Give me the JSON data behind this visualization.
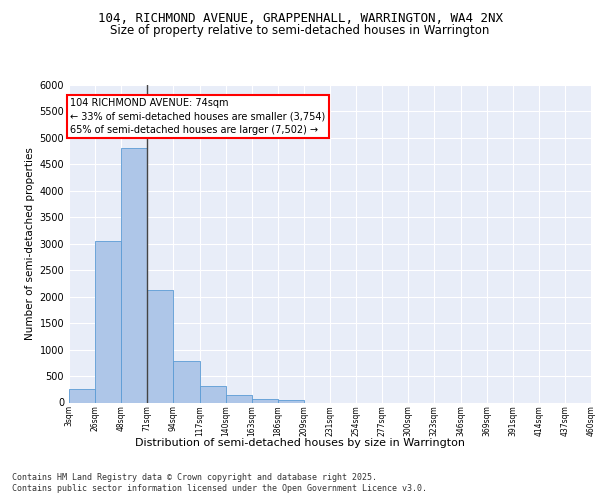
{
  "title_line1": "104, RICHMOND AVENUE, GRAPPENHALL, WARRINGTON, WA4 2NX",
  "title_line2": "Size of property relative to semi-detached houses in Warrington",
  "xlabel": "Distribution of semi-detached houses by size in Warrington",
  "ylabel": "Number of semi-detached properties",
  "bar_counts": [
    250,
    3050,
    4800,
    2120,
    780,
    310,
    140,
    75,
    40,
    0,
    0,
    0,
    0,
    0,
    0,
    0,
    0,
    0,
    0,
    0
  ],
  "bin_labels": [
    "3sqm",
    "26sqm",
    "48sqm",
    "71sqm",
    "94sqm",
    "117sqm",
    "140sqm",
    "163sqm",
    "186sqm",
    "209sqm",
    "231sqm",
    "254sqm",
    "277sqm",
    "300sqm",
    "323sqm",
    "346sqm",
    "369sqm",
    "391sqm",
    "414sqm",
    "437sqm",
    "460sqm"
  ],
  "ylim": [
    0,
    6000
  ],
  "yticks": [
    0,
    500,
    1000,
    1500,
    2000,
    2500,
    3000,
    3500,
    4000,
    4500,
    5000,
    5500,
    6000
  ],
  "bar_color": "#aec6e8",
  "bar_edge_color": "#5b9bd5",
  "background_color": "#e8edf8",
  "grid_color": "#ffffff",
  "annotation_text": "104 RICHMOND AVENUE: 74sqm\n← 33% of semi-detached houses are smaller (3,754)\n65% of semi-detached houses are larger (7,502) →",
  "marker_bin_index": 2,
  "footer_line1": "Contains HM Land Registry data © Crown copyright and database right 2025.",
  "footer_line2": "Contains public sector information licensed under the Open Government Licence v3.0.",
  "title_fontsize": 9,
  "subtitle_fontsize": 8.5,
  "annotation_fontsize": 7,
  "footer_fontsize": 6,
  "ylabel_fontsize": 7.5,
  "xlabel_fontsize": 8
}
